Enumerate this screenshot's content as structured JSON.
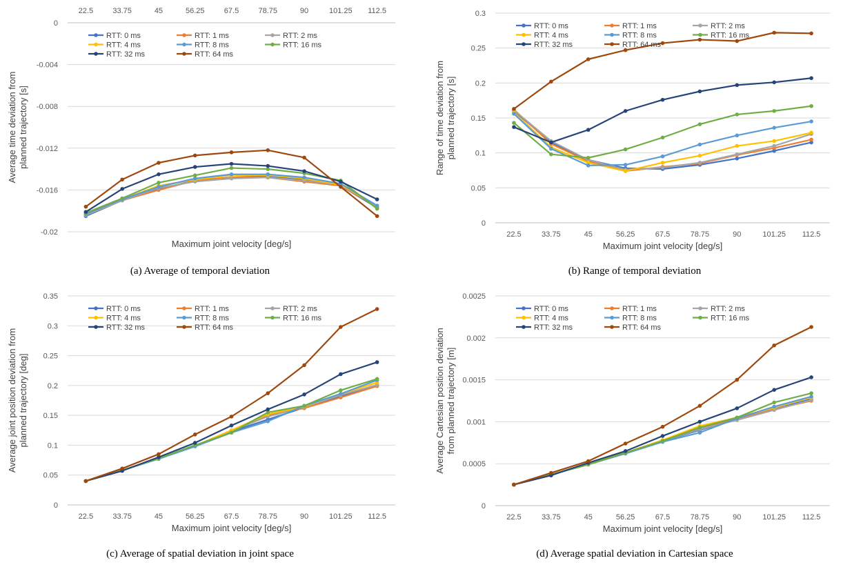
{
  "chart_data": [
    {
      "type": "line",
      "caption": "(a)  Average of temporal deviation",
      "categories": [
        "22.5",
        "33.75",
        "45",
        "56.25",
        "67.5",
        "78.75",
        "90",
        "101.25",
        "112.5"
      ],
      "xlabel": "Maximum joint velocity [deg/s]",
      "ylabel": "Average time deviation from planned trajectory [s]",
      "ylim": [
        -0.02,
        0
      ],
      "yticks": [
        "0",
        "-0.004",
        "-0.008",
        "-0.012",
        "-0.016",
        "-0.02"
      ],
      "ytick_values": [
        0,
        -0.004,
        -0.008,
        -0.012,
        -0.016,
        -0.02
      ],
      "x_axis_position": "top",
      "grid": true,
      "legend": "top-left",
      "series": [
        {
          "name": "RTT: 0 ms",
          "color": "#4472c4",
          "values": [
            -0.0185,
            -0.017,
            -0.0159,
            -0.0151,
            -0.0148,
            -0.0147,
            -0.015,
            -0.0156,
            -0.0177
          ]
        },
        {
          "name": "RTT: 1 ms",
          "color": "#ed7d31",
          "values": [
            -0.0184,
            -0.017,
            -0.016,
            -0.0151,
            -0.0148,
            -0.0148,
            -0.0152,
            -0.0156,
            -0.0176
          ]
        },
        {
          "name": "RTT: 2 ms",
          "color": "#a5a5a5",
          "values": [
            -0.0184,
            -0.017,
            -0.0158,
            -0.0152,
            -0.0149,
            -0.0148,
            -0.0151,
            -0.0155,
            -0.0176
          ]
        },
        {
          "name": "RTT: 4 ms",
          "color": "#ffc000",
          "values": [
            -0.0183,
            -0.0169,
            -0.0156,
            -0.015,
            -0.0146,
            -0.0146,
            -0.0149,
            -0.0155,
            -0.0175
          ]
        },
        {
          "name": "RTT: 8 ms",
          "color": "#5b9bd5",
          "values": [
            -0.0183,
            -0.0169,
            -0.0157,
            -0.0149,
            -0.0145,
            -0.0145,
            -0.0148,
            -0.0154,
            -0.0175
          ]
        },
        {
          "name": "RTT: 16 ms",
          "color": "#70ad47",
          "values": [
            -0.0182,
            -0.0168,
            -0.0153,
            -0.0146,
            -0.0139,
            -0.014,
            -0.0144,
            -0.0151,
            -0.0178
          ]
        },
        {
          "name": "RTT: 32 ms",
          "color": "#264478",
          "values": [
            -0.0181,
            -0.0159,
            -0.0145,
            -0.0138,
            -0.0135,
            -0.0137,
            -0.0142,
            -0.0152,
            -0.0169
          ]
        },
        {
          "name": "RTT: 64 ms",
          "color": "#9e480e",
          "values": [
            -0.0176,
            -0.015,
            -0.0134,
            -0.0127,
            -0.0124,
            -0.0122,
            -0.0129,
            -0.0157,
            -0.0185
          ]
        }
      ]
    },
    {
      "type": "line",
      "caption": "(b)  Range of temporal deviation",
      "categories": [
        "22.5",
        "33.75",
        "45",
        "56.25",
        "67.5",
        "78.75",
        "90",
        "101.25",
        "112.5"
      ],
      "xlabel": "Maximum joint velocity [deg/s]",
      "ylabel": "Range of time deviation from planned trajectory [s]",
      "ylim": [
        0,
        0.3
      ],
      "yticks": [
        "0",
        "0.05",
        "0.1",
        "0.15",
        "0.2",
        "0.25",
        "0.3"
      ],
      "ytick_values": [
        0,
        0.05,
        0.1,
        0.15,
        0.2,
        0.25,
        0.3
      ],
      "x_axis_position": "bottom",
      "grid": true,
      "legend": "top-left",
      "series": [
        {
          "name": "RTT: 0 ms",
          "color": "#4472c4",
          "values": [
            0.16,
            0.115,
            0.09,
            0.078,
            0.077,
            0.083,
            0.092,
            0.103,
            0.115
          ]
        },
        {
          "name": "RTT: 1 ms",
          "color": "#ed7d31",
          "values": [
            0.162,
            0.113,
            0.088,
            0.074,
            0.08,
            0.085,
            0.097,
            0.107,
            0.119
          ]
        },
        {
          "name": "RTT: 2 ms",
          "color": "#a5a5a5",
          "values": [
            0.161,
            0.117,
            0.09,
            0.076,
            0.079,
            0.086,
            0.098,
            0.11,
            0.127
          ]
        },
        {
          "name": "RTT: 4 ms",
          "color": "#ffc000",
          "values": [
            0.158,
            0.108,
            0.086,
            0.074,
            0.086,
            0.096,
            0.11,
            0.117,
            0.129
          ]
        },
        {
          "name": "RTT: 8 ms",
          "color": "#5b9bd5",
          "values": [
            0.156,
            0.106,
            0.082,
            0.083,
            0.095,
            0.112,
            0.125,
            0.136,
            0.145
          ]
        },
        {
          "name": "RTT: 16 ms",
          "color": "#70ad47",
          "values": [
            0.143,
            0.098,
            0.093,
            0.105,
            0.122,
            0.141,
            0.155,
            0.16,
            0.167
          ]
        },
        {
          "name": "RTT: 32 ms",
          "color": "#264478",
          "values": [
            0.137,
            0.115,
            0.133,
            0.16,
            0.176,
            0.188,
            0.197,
            0.201,
            0.207
          ]
        },
        {
          "name": "RTT: 64 ms",
          "color": "#9e480e",
          "values": [
            0.163,
            0.202,
            0.234,
            0.247,
            0.257,
            0.262,
            0.26,
            0.272,
            0.271
          ]
        }
      ]
    },
    {
      "type": "line",
      "caption": "(c)  Average of spatial deviation in joint space",
      "categories": [
        "22.5",
        "33.75",
        "45",
        "56.25",
        "67.5",
        "78.75",
        "90",
        "101.25",
        "112.5"
      ],
      "xlabel": "Maximum joint velocity [deg/s]",
      "ylabel": "Average joint position deviation from planned trajectory [deg]",
      "ylim": [
        0,
        0.35
      ],
      "yticks": [
        "0",
        "0.05",
        "0.1",
        "0.15",
        "0.2",
        "0.25",
        "0.3",
        "0.35"
      ],
      "ytick_values": [
        0,
        0.05,
        0.1,
        0.15,
        0.2,
        0.25,
        0.3,
        0.35
      ],
      "x_axis_position": "bottom",
      "grid": true,
      "legend": "top-left",
      "series": [
        {
          "name": "RTT: 0 ms",
          "color": "#4472c4",
          "values": [
            0.04,
            0.058,
            0.078,
            0.099,
            0.123,
            0.143,
            0.163,
            0.182,
            0.2
          ]
        },
        {
          "name": "RTT: 1 ms",
          "color": "#ed7d31",
          "values": [
            0.04,
            0.058,
            0.078,
            0.099,
            0.124,
            0.15,
            0.162,
            0.18,
            0.199
          ]
        },
        {
          "name": "RTT: 2 ms",
          "color": "#a5a5a5",
          "values": [
            0.04,
            0.058,
            0.078,
            0.099,
            0.124,
            0.148,
            0.164,
            0.184,
            0.201
          ]
        },
        {
          "name": "RTT: 4 ms",
          "color": "#ffc000",
          "values": [
            0.04,
            0.058,
            0.078,
            0.099,
            0.125,
            0.152,
            0.165,
            0.186,
            0.205
          ]
        },
        {
          "name": "RTT: 8 ms",
          "color": "#5b9bd5",
          "values": [
            0.04,
            0.058,
            0.077,
            0.098,
            0.121,
            0.14,
            0.166,
            0.186,
            0.209
          ]
        },
        {
          "name": "RTT: 16 ms",
          "color": "#70ad47",
          "values": [
            0.04,
            0.058,
            0.078,
            0.1,
            0.121,
            0.155,
            0.166,
            0.192,
            0.211
          ]
        },
        {
          "name": "RTT: 32 ms",
          "color": "#264478",
          "values": [
            0.04,
            0.057,
            0.08,
            0.104,
            0.133,
            0.16,
            0.185,
            0.219,
            0.239
          ]
        },
        {
          "name": "RTT: 64 ms",
          "color": "#9e480e",
          "values": [
            0.04,
            0.061,
            0.085,
            0.118,
            0.148,
            0.187,
            0.234,
            0.298,
            0.328
          ]
        }
      ]
    },
    {
      "type": "line",
      "caption": "(d)  Average spatial deviation in Cartesian space",
      "categories": [
        "22.5",
        "33.75",
        "45",
        "56.25",
        "67.5",
        "78.75",
        "90",
        "101.25",
        "112.5"
      ],
      "xlabel": "Maximum joint velocity [deg/s]",
      "ylabel": "Average Cartesian position deviation from planned trajectory [m]",
      "ylim": [
        0,
        0.0025
      ],
      "yticks": [
        "0",
        "0.0005",
        "0.001",
        "0.0015",
        "0.002",
        "0.0025"
      ],
      "ytick_values": [
        0,
        0.0005,
        0.001,
        0.0015,
        0.002,
        0.0025
      ],
      "x_axis_position": "bottom",
      "grid": true,
      "legend": "top-left",
      "series": [
        {
          "name": "RTT: 0 ms",
          "color": "#4472c4",
          "values": [
            0.00025,
            0.00037,
            0.0005,
            0.00063,
            0.00077,
            0.0009,
            0.00103,
            0.00115,
            0.00127
          ]
        },
        {
          "name": "RTT: 1 ms",
          "color": "#ed7d31",
          "values": [
            0.00025,
            0.00037,
            0.0005,
            0.00063,
            0.00078,
            0.00093,
            0.00103,
            0.00115,
            0.00125
          ]
        },
        {
          "name": "RTT: 2 ms",
          "color": "#a5a5a5",
          "values": [
            0.00025,
            0.00037,
            0.0005,
            0.00063,
            0.00077,
            0.00091,
            0.00102,
            0.00114,
            0.00126
          ]
        },
        {
          "name": "RTT: 4 ms",
          "color": "#ffc000",
          "values": [
            0.00025,
            0.00037,
            0.0005,
            0.00063,
            0.00078,
            0.00095,
            0.00105,
            0.00117,
            0.00129
          ]
        },
        {
          "name": "RTT: 8 ms",
          "color": "#5b9bd5",
          "values": [
            0.00025,
            0.00037,
            0.00049,
            0.00062,
            0.00076,
            0.00087,
            0.00104,
            0.00118,
            0.0013
          ]
        },
        {
          "name": "RTT: 16 ms",
          "color": "#70ad47",
          "values": [
            0.00025,
            0.00037,
            0.00049,
            0.00063,
            0.00077,
            0.00093,
            0.00105,
            0.00123,
            0.00134
          ]
        },
        {
          "name": "RTT: 32 ms",
          "color": "#264478",
          "values": [
            0.00025,
            0.00036,
            0.00051,
            0.00065,
            0.00083,
            0.001,
            0.00116,
            0.00138,
            0.00153
          ]
        },
        {
          "name": "RTT: 64 ms",
          "color": "#9e480e",
          "values": [
            0.00025,
            0.00039,
            0.00053,
            0.00074,
            0.00094,
            0.00119,
            0.0015,
            0.00191,
            0.00213
          ]
        }
      ]
    }
  ]
}
